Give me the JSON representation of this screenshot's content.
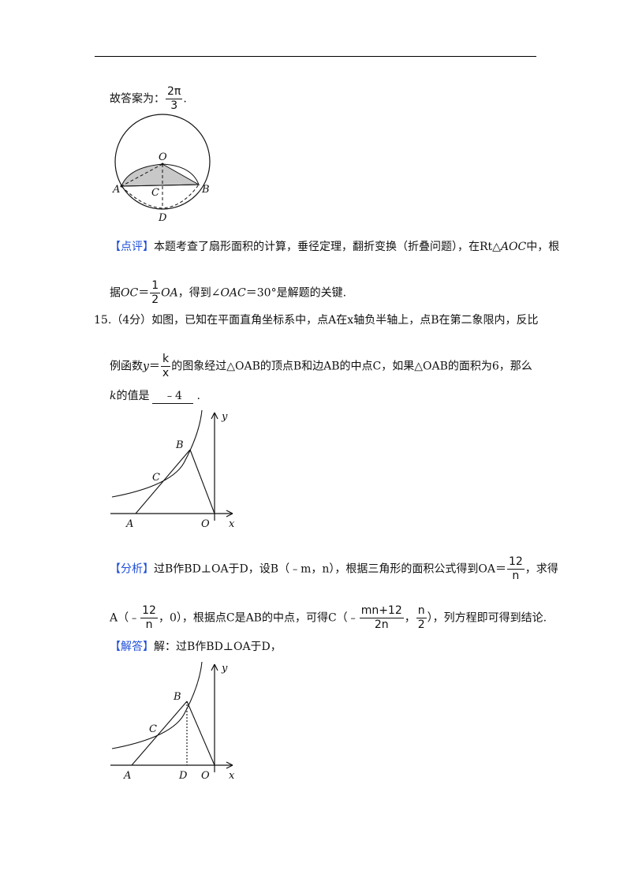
{
  "header": {
    "rule": true
  },
  "answer14": {
    "prefix": "故答案为：",
    "frac": {
      "num": "2π",
      "den": "3"
    },
    "suffix": "."
  },
  "figure1": {
    "labels": {
      "O": "O",
      "A": "A",
      "B": "B",
      "C": "C",
      "D": "D"
    },
    "shade_color": "#c8c8c8"
  },
  "comment14": {
    "tag": "【点评】",
    "text1": "本题考查了扇形面积的计算，垂径定理，翻折变换（折叠问题），在Rt△",
    "aoc": "AOC",
    "text2": "中，根",
    "line2_prefix": "据",
    "oc": "OC",
    "eq": "＝",
    "frac": {
      "num": "1",
      "den": "2"
    },
    "oa": "OA",
    "line2_mid": "，得到∠",
    "oac": "OAC",
    "line2_end": "＝30°是解题的关键."
  },
  "q15": {
    "number": "15.",
    "score": "（4分）",
    "line1": "如图，已知在平面直角坐标系中，点A在x轴负半轴上，点B在第二象限内，反比",
    "line2_prefix": "例函数",
    "y_var": "y",
    "eq": "＝",
    "frac": {
      "num": "k",
      "den": "x"
    },
    "line2_rest": "的图象经过△OAB的顶点B和边AB的中点C，如果△OAB的面积为6，那么",
    "k_var": "k",
    "line3_text": "的值是",
    "answer": "﹣4",
    "line3_end": "."
  },
  "figure2": {
    "labels": {
      "B": "B",
      "C": "C",
      "A": "A",
      "O": "O",
      "x": "x",
      "y": "y"
    }
  },
  "analysis15": {
    "tag": "【分析】",
    "text1": "过B作BD⊥OA于D，设B（﹣m，n），根据三角形的面积公式得到OA＝",
    "frac1": {
      "num": "12",
      "den": "n"
    },
    "text1_end": "，求得",
    "line2_a": "A（﹣",
    "frac2": {
      "num": "12",
      "den": "n"
    },
    "line2_b": "，0），根据点C是AB的中点，可得C（﹣",
    "frac3": {
      "num": "mn+12",
      "den": "2n"
    },
    "line2_c": "，",
    "frac4": {
      "num": "n",
      "den": "2"
    },
    "line2_d": "），列方程即可得到结论."
  },
  "solution15": {
    "tag": "【解答】",
    "text": "解：过B作BD⊥OA于D，"
  },
  "figure3": {
    "labels": {
      "B": "B",
      "C": "C",
      "A": "A",
      "D": "D",
      "O": "O",
      "x": "x",
      "y": "y"
    }
  }
}
